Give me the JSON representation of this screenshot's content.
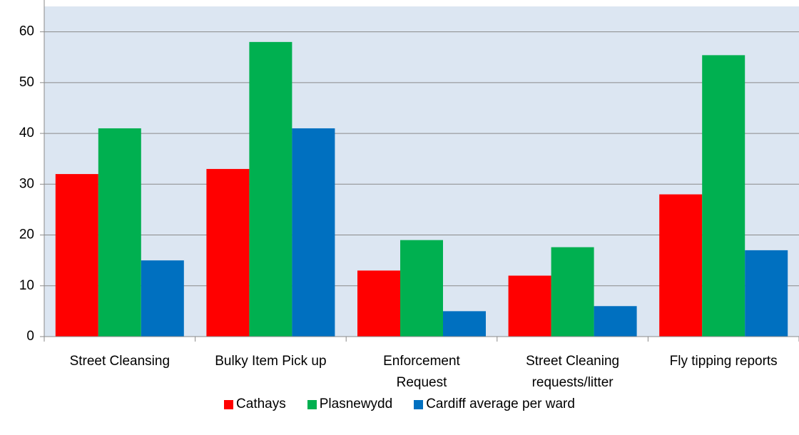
{
  "chart_data": {
    "type": "bar",
    "categories": [
      "Street Cleansing",
      "Bulky Item Pick up",
      "Enforcement\nRequest",
      "Street Cleaning\nrequests/litter",
      "Fly tipping reports"
    ],
    "series": [
      {
        "name": "Cathays",
        "color": "#ff0000",
        "values": [
          32,
          33,
          13,
          12,
          28
        ]
      },
      {
        "name": "Plasnewydd",
        "color": "#00b050",
        "values": [
          41,
          58,
          19,
          17.6,
          55.4
        ]
      },
      {
        "name": "Cardiff average per ward",
        "color": "#0070c0",
        "values": [
          15,
          41,
          5,
          6,
          17
        ]
      }
    ],
    "ylim": [
      0,
      65
    ],
    "yticks": [
      0,
      10,
      20,
      30,
      40,
      50,
      60
    ],
    "grid": true,
    "legend": "bottom"
  }
}
